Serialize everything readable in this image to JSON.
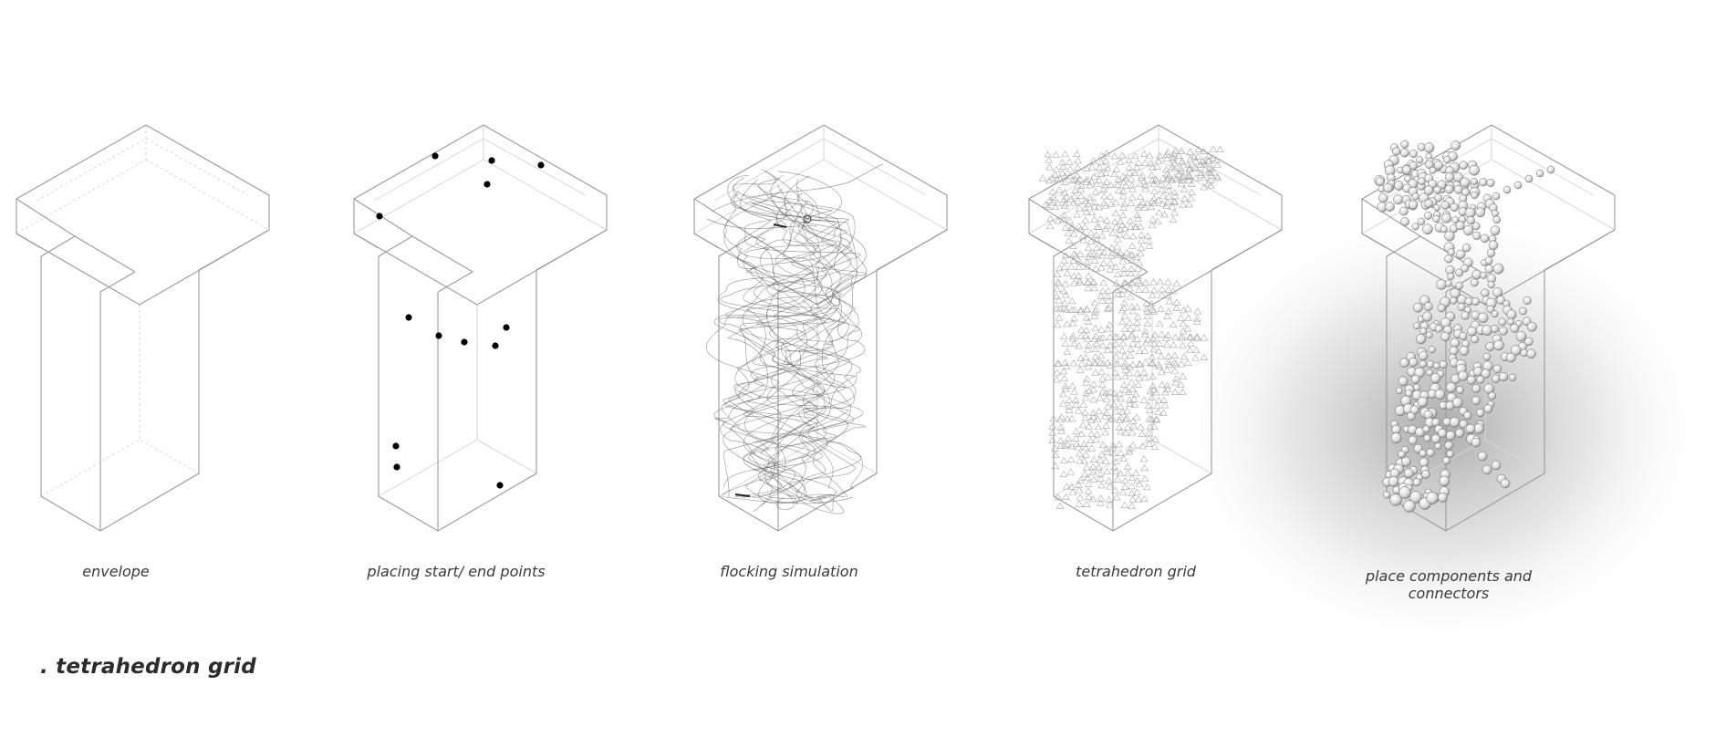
{
  "title": ". tetrahedron grid",
  "steps": [
    {
      "id": "envelope",
      "caption": "envelope"
    },
    {
      "id": "points",
      "caption": "placing start/ end points"
    },
    {
      "id": "flock",
      "caption": "flocking simulation"
    },
    {
      "id": "tetra",
      "caption": "tetrahedron grid"
    },
    {
      "id": "place",
      "caption": "place components and connectors"
    }
  ],
  "colors": {
    "outline": "#9a9a9a",
    "hidden_edge": "#d6d6d6",
    "point": "#000000",
    "curve": "#555555",
    "grid": "#a8a8a8",
    "sphere_fill": "#e8e8e8",
    "sphere_stroke": "#6a6a6a",
    "shadow": "#bdbdbd"
  }
}
